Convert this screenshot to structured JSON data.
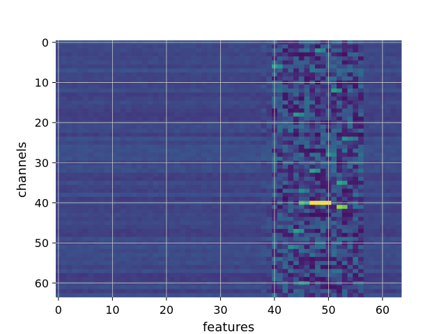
{
  "chart_data": {
    "type": "heatmap",
    "xlabel": "features",
    "ylabel": "channels",
    "xlim": [
      0,
      63
    ],
    "ylim": [
      0,
      63
    ],
    "y_inverted": true,
    "grid": true,
    "colormap": "viridis",
    "x_ticks": [
      0,
      10,
      20,
      30,
      40,
      50,
      60
    ],
    "y_ticks": [
      0,
      10,
      20,
      30,
      40,
      50,
      60
    ],
    "n_rows": 64,
    "n_cols": 64,
    "matrix_summary": {
      "background_level": 0.22,
      "active_feature_range": [
        40,
        56
      ],
      "peak": {
        "channel": 40,
        "features": [
          47,
          48,
          49,
          50
        ],
        "value": 1.0
      },
      "secondary_peaks": [
        {
          "channel": 41,
          "feature": 52,
          "value": 0.85
        },
        {
          "channel": 40,
          "feature": 45,
          "value": 0.72
        },
        {
          "channel": 35,
          "feature": 52,
          "value": 0.62
        },
        {
          "channel": 32,
          "feature": 47,
          "value": 0.6
        },
        {
          "channel": 12,
          "feature": 51,
          "value": 0.58
        },
        {
          "channel": 47,
          "feature": 44,
          "value": 0.58
        },
        {
          "channel": 6,
          "feature": 40,
          "value": 0.6
        },
        {
          "channel": 2,
          "feature": 48,
          "value": 0.55
        },
        {
          "channel": 18,
          "feature": 44,
          "value": 0.56
        },
        {
          "channel": 24,
          "feature": 53,
          "value": 0.54
        },
        {
          "channel": 51,
          "feature": 43,
          "value": 0.52
        },
        {
          "channel": 60,
          "feature": 45,
          "value": 0.5
        },
        {
          "channel": 28,
          "feature": 50,
          "value": 0.52
        },
        {
          "channel": 37,
          "feature": 45,
          "value": 0.5
        }
      ],
      "dark_regions": [
        {
          "channel": 3,
          "features": [
            43,
            47
          ],
          "value": 0.05
        },
        {
          "channel": 27,
          "features": [
            45,
            49
          ],
          "value": 0.04
        },
        {
          "channel": 43,
          "features": [
            46,
            50
          ],
          "value": 0.05
        },
        {
          "channel": 54,
          "features": [
            45,
            51
          ],
          "value": 0.06
        },
        {
          "channel": 61,
          "features": [
            49,
            52
          ],
          "value": 0.05
        }
      ]
    }
  }
}
